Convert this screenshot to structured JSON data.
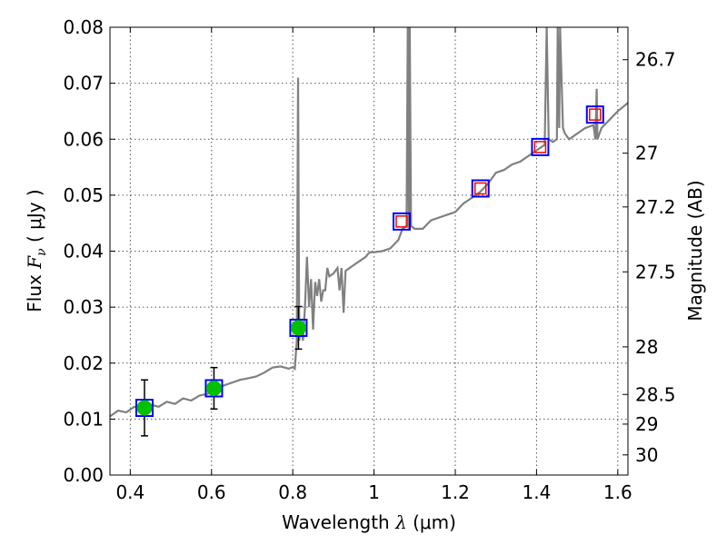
{
  "chart_data": {
    "type": "line",
    "xlabel": {
      "prefix": "Wavelength ",
      "symbol": "λ",
      "unit": " (μm)"
    },
    "ylabel": {
      "prefix": "Flux ",
      "symbol": "F",
      "subscript": "ν",
      "unit": " ( μJy )"
    },
    "y2label": "Magnitude (AB)",
    "xlim": [
      0.35,
      1.625
    ],
    "ylim": [
      0.0,
      0.08
    ],
    "grid": true,
    "x_ticks": [
      0.4,
      0.6,
      0.8,
      1.0,
      1.2,
      1.4,
      1.6
    ],
    "x_tick_labels": [
      "0.4",
      "0.6",
      "0.8",
      "1",
      "1.2",
      "1.4",
      "1.6"
    ],
    "y_ticks": [
      0.0,
      0.01,
      0.02,
      0.03,
      0.04,
      0.05,
      0.06,
      0.07,
      0.08
    ],
    "y_tick_labels": [
      "0.00",
      "0.01",
      "0.02",
      "0.03",
      "0.04",
      "0.05",
      "0.06",
      "0.07",
      "0.08"
    ],
    "right_ticks": [
      {
        "label": "26.7",
        "flux": 0.0742
      },
      {
        "label": "27",
        "flux": 0.0575
      },
      {
        "label": "27.2",
        "flux": 0.0479
      },
      {
        "label": "27.5",
        "flux": 0.0363
      },
      {
        "label": "28",
        "flux": 0.0229
      },
      {
        "label": "28.5",
        "flux": 0.0144
      },
      {
        "label": "29",
        "flux": 0.0091
      },
      {
        "label": "30",
        "flux": 0.0036
      }
    ],
    "spectrum": {
      "color": "#808080",
      "points": [
        [
          0.35,
          0.0105
        ],
        [
          0.37,
          0.0115
        ],
        [
          0.39,
          0.0112
        ],
        [
          0.41,
          0.0122
        ],
        [
          0.43,
          0.0118
        ],
        [
          0.45,
          0.0126
        ],
        [
          0.47,
          0.0122
        ],
        [
          0.49,
          0.0131
        ],
        [
          0.51,
          0.0127
        ],
        [
          0.53,
          0.0137
        ],
        [
          0.55,
          0.0133
        ],
        [
          0.57,
          0.0142
        ],
        [
          0.59,
          0.0145
        ],
        [
          0.61,
          0.0152
        ],
        [
          0.63,
          0.016
        ],
        [
          0.65,
          0.0165
        ],
        [
          0.67,
          0.017
        ],
        [
          0.69,
          0.0173
        ],
        [
          0.71,
          0.0176
        ],
        [
          0.73,
          0.0183
        ],
        [
          0.75,
          0.0192
        ],
        [
          0.77,
          0.0194
        ],
        [
          0.79,
          0.019
        ],
        [
          0.8,
          0.0193
        ],
        [
          0.805,
          0.019
        ],
        [
          0.81,
          0.024
        ],
        [
          0.813,
          0.071
        ],
        [
          0.816,
          0.024
        ],
        [
          0.82,
          0.0275
        ],
        [
          0.825,
          0.024
        ],
        [
          0.83,
          0.03
        ],
        [
          0.835,
          0.039
        ],
        [
          0.84,
          0.03
        ],
        [
          0.845,
          0.035
        ],
        [
          0.85,
          0.026
        ],
        [
          0.855,
          0.0345
        ],
        [
          0.86,
          0.032
        ],
        [
          0.865,
          0.035
        ],
        [
          0.87,
          0.031
        ],
        [
          0.875,
          0.033
        ],
        [
          0.88,
          0.033
        ],
        [
          0.885,
          0.037
        ],
        [
          0.89,
          0.0355
        ],
        [
          0.9,
          0.036
        ],
        [
          0.91,
          0.037
        ],
        [
          0.915,
          0.033
        ],
        [
          0.92,
          0.037
        ],
        [
          0.925,
          0.029
        ],
        [
          0.93,
          0.0365
        ],
        [
          0.95,
          0.0375
        ],
        [
          0.97,
          0.0385
        ],
        [
          0.98,
          0.039
        ],
        [
          0.985,
          0.0395
        ],
        [
          0.99,
          0.0398
        ],
        [
          1.0,
          0.0398
        ],
        [
          1.02,
          0.04
        ],
        [
          1.04,
          0.0405
        ],
        [
          1.06,
          0.042
        ],
        [
          1.07,
          0.044
        ],
        [
          1.08,
          0.0445
        ],
        [
          1.083,
          0.08
        ],
        [
          1.086,
          0.044
        ],
        [
          1.088,
          0.08
        ],
        [
          1.091,
          0.0445
        ],
        [
          1.1,
          0.044
        ],
        [
          1.12,
          0.044
        ],
        [
          1.14,
          0.0455
        ],
        [
          1.16,
          0.046
        ],
        [
          1.18,
          0.0465
        ],
        [
          1.2,
          0.047
        ],
        [
          1.22,
          0.0485
        ],
        [
          1.24,
          0.0495
        ],
        [
          1.26,
          0.0505
        ],
        [
          1.28,
          0.052
        ],
        [
          1.3,
          0.054
        ],
        [
          1.32,
          0.0545
        ],
        [
          1.34,
          0.0555
        ],
        [
          1.36,
          0.056
        ],
        [
          1.38,
          0.057
        ],
        [
          1.4,
          0.058
        ],
        [
          1.42,
          0.059
        ],
        [
          1.425,
          0.08
        ],
        [
          1.43,
          0.06
        ],
        [
          1.44,
          0.0595
        ],
        [
          1.45,
          0.06
        ],
        [
          1.452,
          0.08
        ],
        [
          1.456,
          0.062
        ],
        [
          1.458,
          0.08
        ],
        [
          1.465,
          0.062
        ],
        [
          1.47,
          0.061
        ],
        [
          1.48,
          0.06
        ],
        [
          1.5,
          0.061
        ],
        [
          1.52,
          0.062
        ],
        [
          1.54,
          0.0625
        ],
        [
          1.545,
          0.06
        ],
        [
          1.548,
          0.069
        ],
        [
          1.55,
          0.06
        ],
        [
          1.56,
          0.062
        ],
        [
          1.58,
          0.0635
        ],
        [
          1.6,
          0.065
        ],
        [
          1.625,
          0.0665
        ]
      ]
    },
    "points": [
      {
        "x": 0.435,
        "y": 0.012,
        "err": 0.005,
        "marker": "green-circle",
        "box": "blue"
      },
      {
        "x": 0.606,
        "y": 0.0155,
        "err": 0.0037,
        "marker": "green-circle",
        "box": "blue"
      },
      {
        "x": 0.814,
        "y": 0.0263,
        "err": 0.0038,
        "marker": "green-circle",
        "box": "blue"
      },
      {
        "x": 1.068,
        "y": 0.0453,
        "marker": "red-square",
        "box": "blue"
      },
      {
        "x": 1.262,
        "y": 0.0512,
        "marker": "red-square",
        "box": "blue"
      },
      {
        "x": 1.409,
        "y": 0.0586,
        "marker": "red-square",
        "box": "blue"
      },
      {
        "x": 1.544,
        "y": 0.0644,
        "marker": "red-square",
        "box": "blue"
      }
    ],
    "colors": {
      "green": "#00c000",
      "blue": "#0000ff",
      "red": "#ff0000",
      "grid": "#555555"
    }
  }
}
